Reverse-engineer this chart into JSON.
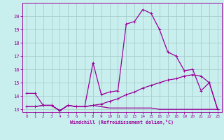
{
  "xlabel": "Windchill (Refroidissement éolien,°C)",
  "bg_color": "#c8eeee",
  "grid_color": "#aacccc",
  "line_color": "#990099",
  "xlim": [
    -0.5,
    23.5
  ],
  "ylim": [
    12.8,
    21.0
  ],
  "yticks": [
    13,
    14,
    15,
    16,
    17,
    18,
    19,
    20
  ],
  "xticks": [
    0,
    1,
    2,
    3,
    4,
    5,
    6,
    7,
    8,
    9,
    10,
    11,
    12,
    13,
    14,
    15,
    16,
    17,
    18,
    19,
    20,
    21,
    22,
    23
  ],
  "line1_x": [
    0,
    1,
    2,
    3,
    4,
    5,
    6,
    7,
    8,
    9,
    10,
    11,
    12,
    13,
    14,
    15,
    16,
    17,
    18,
    19,
    20,
    21,
    22,
    23
  ],
  "line1_y": [
    14.2,
    14.2,
    13.3,
    13.3,
    12.9,
    13.3,
    13.2,
    13.2,
    16.5,
    14.1,
    14.3,
    14.4,
    19.4,
    19.6,
    20.5,
    20.2,
    19.0,
    17.3,
    17.0,
    15.9,
    16.0,
    14.4,
    15.0,
    13.0
  ],
  "line2_x": [
    0,
    1,
    2,
    3,
    4,
    5,
    6,
    7,
    8,
    9,
    10,
    11,
    12,
    13,
    14,
    15,
    16,
    17,
    18,
    19,
    20,
    21,
    22,
    23
  ],
  "line2_y": [
    13.2,
    13.2,
    13.3,
    13.3,
    12.9,
    13.3,
    13.2,
    13.2,
    13.3,
    13.4,
    13.6,
    13.8,
    14.1,
    14.3,
    14.6,
    14.8,
    15.0,
    15.2,
    15.3,
    15.5,
    15.6,
    15.5,
    15.0,
    13.0
  ],
  "line3_x": [
    0,
    1,
    2,
    3,
    4,
    5,
    6,
    7,
    8,
    9,
    10,
    11,
    12,
    13,
    14,
    15,
    16,
    17,
    18,
    19,
    20,
    21,
    22,
    23
  ],
  "line3_y": [
    13.2,
    13.2,
    13.3,
    13.3,
    12.9,
    13.3,
    13.2,
    13.2,
    13.3,
    13.2,
    13.1,
    13.1,
    13.1,
    13.1,
    13.1,
    13.1,
    13.0,
    13.0,
    13.0,
    13.0,
    13.0,
    13.0,
    13.0,
    13.0
  ],
  "marker_size": 2.5,
  "line_width": 0.9
}
